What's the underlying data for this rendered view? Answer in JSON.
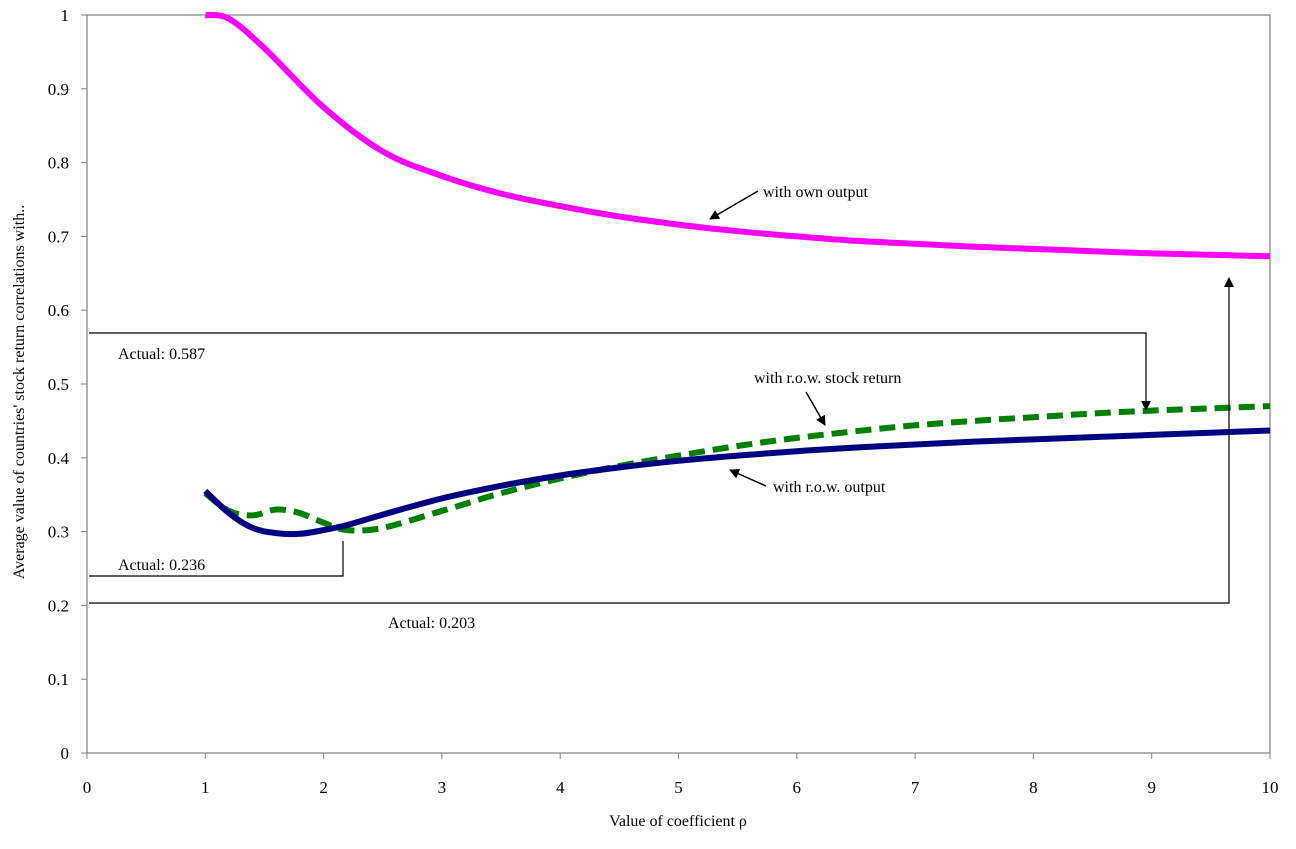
{
  "chart_data": {
    "type": "line",
    "xlabel": "Value of coefficient ρ",
    "ylabel": "Average value of countries' stock return correlations with..",
    "xlim": [
      0,
      10
    ],
    "ylim": [
      0,
      1
    ],
    "x_ticks": [
      "0",
      "1",
      "2",
      "3",
      "4",
      "5",
      "6",
      "7",
      "8",
      "9",
      "10"
    ],
    "y_ticks": [
      "0",
      "0.1",
      "0.2",
      "0.3",
      "0.4",
      "0.5",
      "0.6",
      "0.7",
      "0.8",
      "0.9",
      "1"
    ],
    "grid": false,
    "series": [
      {
        "name": "with own output",
        "color": "#ff00ff",
        "style": "solid",
        "x": [
          1,
          1.2,
          1.5,
          2,
          2.5,
          3,
          3.5,
          4,
          4.5,
          5,
          5.5,
          6,
          6.5,
          7,
          7.5,
          8,
          8.5,
          9,
          9.5,
          10
        ],
        "y": [
          1,
          0.995,
          0.955,
          0.875,
          0.815,
          0.782,
          0.758,
          0.741,
          0.727,
          0.716,
          0.707,
          0.7,
          0.694,
          0.69,
          0.686,
          0.683,
          0.68,
          0.677,
          0.675,
          0.673
        ]
      },
      {
        "name": "with r.o.w. stock return",
        "color": "#008000",
        "style": "dashed",
        "x": [
          1,
          1.2,
          1.4,
          1.6,
          1.8,
          2,
          2.2,
          2.5,
          3,
          3.5,
          4,
          4.5,
          5,
          5.5,
          6,
          6.5,
          7,
          7.5,
          8,
          8.5,
          9,
          9.5,
          10
        ],
        "y": [
          0.352,
          0.328,
          0.322,
          0.33,
          0.325,
          0.312,
          0.302,
          0.305,
          0.328,
          0.352,
          0.372,
          0.389,
          0.403,
          0.416,
          0.427,
          0.436,
          0.444,
          0.45,
          0.455,
          0.46,
          0.464,
          0.467,
          0.47
        ]
      },
      {
        "name": "with r.o.w. output",
        "color": "#000080",
        "style": "solid",
        "x": [
          1,
          1.2,
          1.4,
          1.6,
          1.8,
          2,
          2.2,
          2.5,
          3,
          3.5,
          4,
          4.5,
          5,
          5.5,
          6,
          6.5,
          7,
          7.5,
          8,
          8.5,
          9,
          9.5,
          10
        ],
        "y": [
          0.355,
          0.325,
          0.305,
          0.298,
          0.297,
          0.302,
          0.309,
          0.323,
          0.345,
          0.362,
          0.376,
          0.387,
          0.396,
          0.403,
          0.409,
          0.414,
          0.418,
          0.422,
          0.425,
          0.428,
          0.431,
          0.434,
          0.437
        ]
      }
    ],
    "annotations": [
      {
        "text": "with own output"
      },
      {
        "text": "with r.o.w. stock return"
      },
      {
        "text": "with r.o.w. output"
      },
      {
        "text": "Actual: 0.587"
      },
      {
        "text": "Actual: 0.236"
      },
      {
        "text": "Actual: 0.203"
      }
    ]
  }
}
